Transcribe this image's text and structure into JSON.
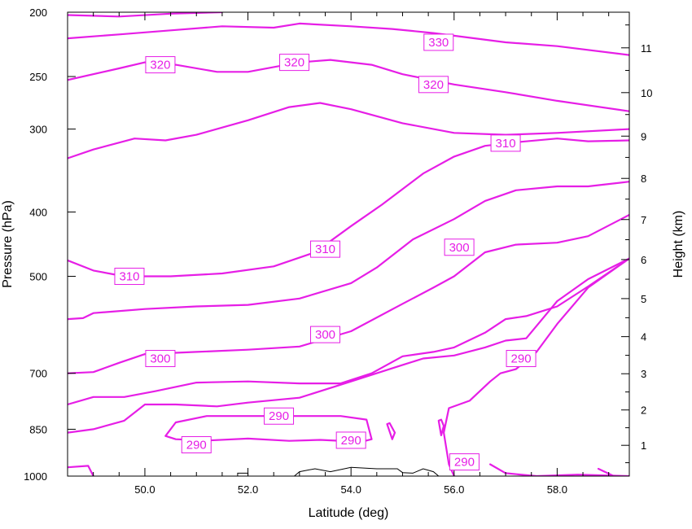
{
  "chart_data": {
    "type": "contour",
    "xlabel": "Latitude (deg)",
    "ylabel": "Pressure (hPa)",
    "y2label": "Height (km)",
    "xlim": [
      48.5,
      59.4
    ],
    "xticks": [
      50.0,
      52.0,
      54.0,
      56.0,
      58.0
    ],
    "xtick_labels": [
      "50.0",
      "52.0",
      "54.0",
      "56.0",
      "58.0"
    ],
    "ylim": [
      1000,
      200
    ],
    "yscale": "log",
    "yticks": [
      200,
      250,
      300,
      400,
      500,
      700,
      850,
      1000
    ],
    "ytick_labels": [
      "200",
      "250",
      "300",
      "400",
      "500",
      "700",
      "850",
      "1000"
    ],
    "y2ticks": [
      1,
      2,
      3,
      4,
      5,
      6,
      7,
      8,
      9,
      10,
      11
    ],
    "y2tick_labels": [
      "1",
      "2",
      "3",
      "4",
      "5",
      "6",
      "7",
      "8",
      "9",
      "10",
      "11"
    ],
    "contour_color": "#e61ee6",
    "terrain_color": "#000000",
    "contours": [
      {
        "level": 330,
        "points": [
          [
            48.5,
            202
          ],
          [
            49.5,
            203
          ],
          [
            50.5,
            201
          ],
          [
            51.5,
            200
          ]
        ]
      },
      {
        "level": 330,
        "points": [
          [
            48.5,
            219
          ],
          [
            49.5,
            216
          ],
          [
            50.5,
            213
          ],
          [
            51.5,
            210
          ],
          [
            52.5,
            211
          ],
          [
            53.0,
            208
          ],
          [
            54.0,
            210
          ],
          [
            54.8,
            212
          ],
          [
            55.6,
            215
          ],
          [
            56.2,
            218
          ],
          [
            57.0,
            222
          ],
          [
            58.0,
            225
          ],
          [
            59.4,
            232
          ]
        ]
      },
      {
        "level": 320,
        "points": [
          [
            48.5,
            253
          ],
          [
            49.5,
            243
          ],
          [
            50.0,
            238
          ],
          [
            50.6,
            240
          ],
          [
            51.4,
            246
          ],
          [
            52.0,
            246
          ],
          [
            53.0,
            238
          ],
          [
            53.6,
            236
          ],
          [
            54.4,
            240
          ],
          [
            55.0,
            248
          ],
          [
            56.0,
            257
          ],
          [
            57.0,
            264
          ],
          [
            58.0,
            272
          ],
          [
            59.4,
            282
          ]
        ]
      },
      {
        "level": 310,
        "points": [
          [
            48.5,
            332
          ],
          [
            49.0,
            322
          ],
          [
            49.8,
            310
          ],
          [
            50.4,
            312
          ],
          [
            51.0,
            306
          ],
          [
            52.0,
            291
          ],
          [
            52.8,
            278
          ],
          [
            53.4,
            274
          ],
          [
            54.0,
            280
          ],
          [
            55.0,
            294
          ],
          [
            56.0,
            304
          ],
          [
            57.0,
            306
          ],
          [
            58.0,
            304
          ],
          [
            59.4,
            300
          ]
        ]
      },
      {
        "level": 310,
        "points": [
          [
            48.5,
            473
          ],
          [
            49.0,
            490
          ],
          [
            49.6,
            500
          ],
          [
            50.5,
            500
          ],
          [
            51.5,
            495
          ],
          [
            52.5,
            483
          ],
          [
            53.3,
            460
          ],
          [
            54.0,
            420
          ],
          [
            54.6,
            390
          ],
          [
            55.4,
            350
          ],
          [
            56.0,
            330
          ],
          [
            56.6,
            318
          ],
          [
            57.2,
            314
          ],
          [
            58.0,
            310
          ],
          [
            58.6,
            313
          ],
          [
            59.4,
            312
          ]
        ]
      },
      {
        "level": 300,
        "points": [
          [
            48.5,
            580
          ],
          [
            48.8,
            578
          ],
          [
            49.0,
            568
          ],
          [
            50.0,
            560
          ],
          [
            51.0,
            555
          ],
          [
            52.0,
            552
          ],
          [
            53.0,
            540
          ],
          [
            54.0,
            512
          ],
          [
            54.5,
            485
          ],
          [
            55.2,
            440
          ],
          [
            56.0,
            410
          ],
          [
            56.6,
            385
          ],
          [
            57.2,
            371
          ],
          [
            58.0,
            366
          ],
          [
            58.6,
            366
          ],
          [
            59.4,
            360
          ]
        ]
      },
      {
        "level": 300,
        "points": [
          [
            48.5,
            700
          ],
          [
            49.0,
            697
          ],
          [
            49.5,
            675
          ],
          [
            50.0,
            655
          ],
          [
            51.0,
            650
          ],
          [
            52.0,
            645
          ],
          [
            53.0,
            638
          ],
          [
            54.0,
            605
          ],
          [
            55.0,
            550
          ],
          [
            55.6,
            520
          ],
          [
            56.0,
            500
          ],
          [
            56.6,
            460
          ],
          [
            57.2,
            448
          ],
          [
            58.0,
            445
          ],
          [
            58.6,
            435
          ],
          [
            59.4,
            404
          ]
        ]
      },
      {
        "level": 290,
        "points": [
          [
            48.5,
            780
          ],
          [
            49.0,
            760
          ],
          [
            49.6,
            760
          ],
          [
            50.2,
            745
          ],
          [
            51.0,
            723
          ],
          [
            52.0,
            720
          ],
          [
            53.0,
            725
          ],
          [
            53.8,
            725
          ],
          [
            54.4,
            700
          ],
          [
            55.0,
            660
          ],
          [
            55.6,
            650
          ],
          [
            56.0,
            640
          ],
          [
            56.6,
            608
          ],
          [
            57.0,
            580
          ],
          [
            57.4,
            574
          ],
          [
            58.0,
            555
          ],
          [
            58.6,
            518
          ],
          [
            59.4,
            470
          ]
        ]
      },
      {
        "level": 290,
        "points": [
          [
            48.5,
            860
          ],
          [
            49.0,
            850
          ],
          [
            49.6,
            825
          ],
          [
            50.0,
            780
          ],
          [
            50.6,
            780
          ],
          [
            51.4,
            785
          ],
          [
            52.0,
            775
          ],
          [
            53.0,
            762
          ],
          [
            54.0,
            720
          ],
          [
            55.0,
            680
          ],
          [
            55.4,
            665
          ],
          [
            56.0,
            658
          ],
          [
            56.6,
            640
          ],
          [
            57.0,
            625
          ],
          [
            57.4,
            620
          ],
          [
            58.0,
            545
          ],
          [
            58.6,
            505
          ],
          [
            59.4,
            470
          ]
        ]
      },
      {
        "level": 290,
        "points": [
          [
            50.4,
            870
          ],
          [
            50.6,
            830
          ],
          [
            51.2,
            812
          ],
          [
            52.0,
            812
          ],
          [
            53.0,
            812
          ],
          [
            53.8,
            812
          ],
          [
            54.3,
            822
          ],
          [
            54.4,
            880
          ],
          [
            54.2,
            888
          ],
          [
            53.4,
            882
          ],
          [
            52.8,
            885
          ],
          [
            52.0,
            878
          ],
          [
            51.2,
            884
          ],
          [
            50.6,
            880
          ],
          [
            50.4,
            870
          ]
        ]
      },
      {
        "level": 290,
        "points": [
          [
            56.0,
            1000
          ],
          [
            55.9,
            960
          ],
          [
            55.8,
            860
          ],
          [
            55.9,
            790
          ],
          [
            56.3,
            770
          ],
          [
            56.7,
            720
          ],
          [
            56.9,
            700
          ],
          [
            57.2,
            690
          ],
          [
            57.6,
            650
          ],
          [
            58.0,
            590
          ],
          [
            58.6,
            520
          ],
          [
            59.4,
            470
          ]
        ]
      },
      {
        "level": 290,
        "points": [
          [
            54.7,
            835
          ],
          [
            54.8,
            880
          ],
          [
            54.85,
            860
          ],
          [
            54.75,
            832
          ],
          [
            54.7,
            835
          ]
        ]
      },
      {
        "level": 290,
        "points": [
          [
            55.7,
            825
          ],
          [
            55.75,
            868
          ],
          [
            55.8,
            840
          ],
          [
            55.75,
            822
          ],
          [
            55.7,
            825
          ]
        ]
      },
      {
        "level": 290,
        "points": [
          [
            56.7,
            960
          ],
          [
            57.0,
            990
          ],
          [
            57.6,
            1000
          ],
          [
            58.4,
            995
          ],
          [
            59.4,
            1000
          ]
        ]
      },
      {
        "level": 290,
        "points": [
          [
            48.5,
            970
          ],
          [
            48.9,
            965
          ],
          [
            49.0,
            1000
          ]
        ]
      },
      {
        "level": 290,
        "points": [
          [
            58.8,
            975
          ],
          [
            59.1,
            1000
          ]
        ]
      }
    ],
    "contour_labels": [
      {
        "text": "330",
        "x": 55.7,
        "y": 222
      },
      {
        "text": "320",
        "x": 50.3,
        "y": 240
      },
      {
        "text": "320",
        "x": 52.9,
        "y": 238
      },
      {
        "text": "320",
        "x": 55.6,
        "y": 257
      },
      {
        "text": "310",
        "x": 57.0,
        "y": 315
      },
      {
        "text": "310",
        "x": 53.5,
        "y": 455
      },
      {
        "text": "310",
        "x": 49.7,
        "y": 500
      },
      {
        "text": "300",
        "x": 56.1,
        "y": 452
      },
      {
        "text": "300",
        "x": 53.5,
        "y": 612
      },
      {
        "text": "300",
        "x": 50.3,
        "y": 665
      },
      {
        "text": "290",
        "x": 57.3,
        "y": 665
      },
      {
        "text": "290",
        "x": 52.6,
        "y": 812
      },
      {
        "text": "290",
        "x": 54.0,
        "y": 883
      },
      {
        "text": "290",
        "x": 51.0,
        "y": 897
      },
      {
        "text": "290",
        "x": 56.2,
        "y": 952
      }
    ],
    "terrain": [
      [
        51.8,
        1000
      ],
      [
        51.8,
        990
      ],
      [
        52.0,
        990
      ],
      [
        52.0,
        1000
      ],
      [
        52.9,
        1000
      ],
      [
        53.0,
        985
      ],
      [
        53.3,
        975
      ],
      [
        53.6,
        985
      ],
      [
        54.0,
        970
      ],
      [
        54.5,
        975
      ],
      [
        54.9,
        975
      ],
      [
        55.0,
        988
      ],
      [
        55.2,
        990
      ],
      [
        55.4,
        975
      ],
      [
        55.6,
        985
      ],
      [
        55.7,
        1000
      ]
    ]
  }
}
